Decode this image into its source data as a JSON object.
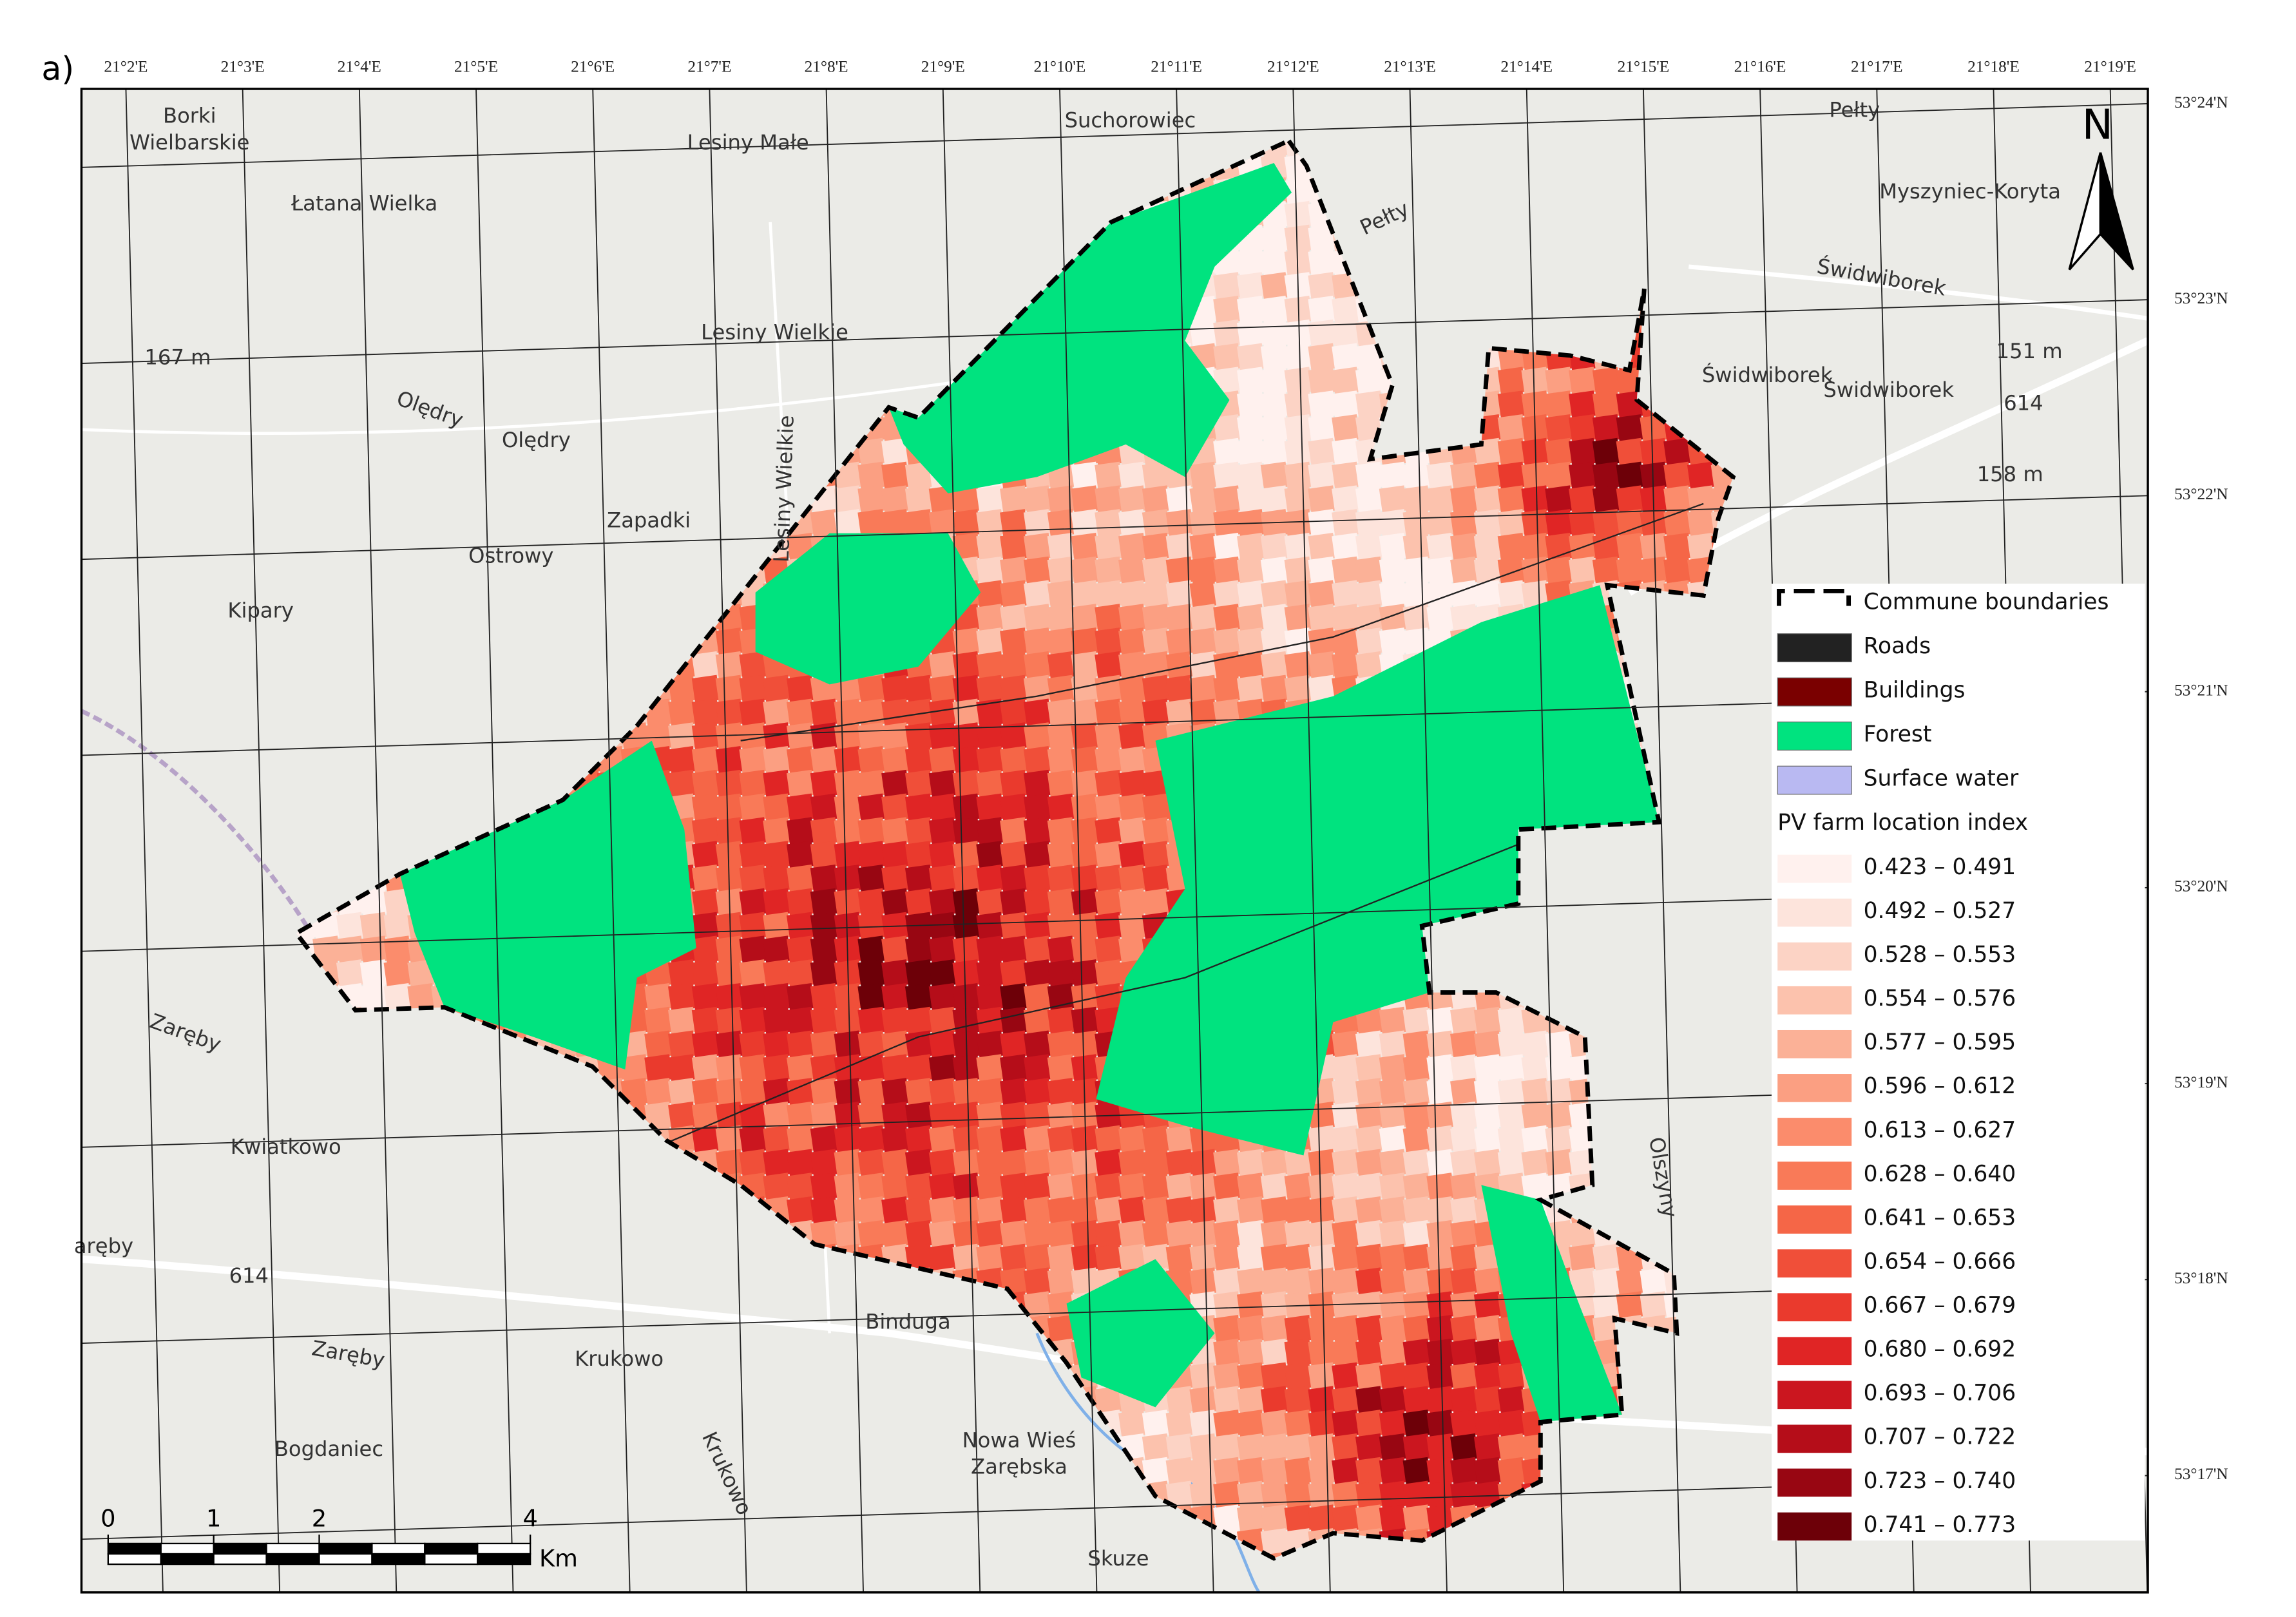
{
  "panel_label": "a)",
  "north_label": "N",
  "longitude_labels": [
    "21°2'E",
    "21°3'E",
    "21°4'E",
    "21°5'E",
    "21°6'E",
    "21°7'E",
    "21°8'E",
    "21°9'E",
    "21°10'E",
    "21°11'E",
    "21°12'E",
    "21°13'E",
    "21°14'E",
    "21°15'E",
    "21°16'E",
    "21°17'E",
    "21°18'E",
    "21°19'E"
  ],
  "latitude_labels": [
    "53°24'N",
    "53°23'N",
    "53°22'N",
    "53°21'N",
    "53°20'N",
    "53°19'N",
    "53°18'N",
    "53°17'N"
  ],
  "places": [
    "Borki",
    "Wielbarskie",
    "Lesiny Małe",
    "Suchorowiec",
    "Łatana Wielka",
    "Myszyniec-Koryta",
    "Lesiny Wielkie",
    "167 m",
    "Olędry",
    "Olędry",
    "Zapadki",
    "Ostrowy",
    "Kipary",
    "Lesiny Wielkie",
    "Świdwiborek",
    "Świdwiborek",
    "Świdwiborek",
    "151 m",
    "614",
    "158 m",
    "Pełty",
    "Pełty",
    "Zaręby",
    "Kwiatkowo",
    "aręby",
    "614",
    "Zaręby",
    "Krukowo",
    "Binduga",
    "Nowa Wieś",
    "Zarębska",
    "Bogdaniec",
    "Krukowo",
    "Skuze",
    "Olszyny"
  ],
  "legend": {
    "items": [
      {
        "label": "Commune boundaries",
        "color": "#000000"
      },
      {
        "label": "Roads",
        "color": "#222222"
      },
      {
        "label": "Buildings",
        "color": "#7a0000"
      },
      {
        "label": "Forest",
        "color": "#00e37f"
      },
      {
        "label": "Surface water",
        "color": "#b9b9f2"
      }
    ],
    "index_title": "PV farm location index",
    "index_classes": [
      {
        "label": "0.423 – 0.491",
        "color": "#fff1ee"
      },
      {
        "label": "0.492 – 0.527",
        "color": "#fde4dc"
      },
      {
        "label": "0.528 – 0.553",
        "color": "#fcd3c5"
      },
      {
        "label": "0.554 – 0.576",
        "color": "#fcc2ad"
      },
      {
        "label": "0.577 – 0.595",
        "color": "#fbb197"
      },
      {
        "label": "0.596 – 0.612",
        "color": "#fb9f82"
      },
      {
        "label": "0.613 – 0.627",
        "color": "#fb8c6c"
      },
      {
        "label": "0.628 – 0.640",
        "color": "#f97a58"
      },
      {
        "label": "0.641 – 0.653",
        "color": "#f56647"
      },
      {
        "label": "0.654 – 0.666",
        "color": "#f04f39"
      },
      {
        "label": "0.667 – 0.679",
        "color": "#ea3a2d"
      },
      {
        "label": "0.680 – 0.692",
        "color": "#e02525"
      },
      {
        "label": "0.693 – 0.706",
        "color": "#cb161f"
      },
      {
        "label": "0.707 – 0.722",
        "color": "#b50d19"
      },
      {
        "label": "0.723 – 0.740",
        "color": "#980612"
      },
      {
        "label": "0.741 – 0.773",
        "color": "#6d0008"
      }
    ]
  },
  "scale_bar": {
    "ticks": [
      0,
      1,
      2,
      4
    ],
    "unit": "Km"
  }
}
